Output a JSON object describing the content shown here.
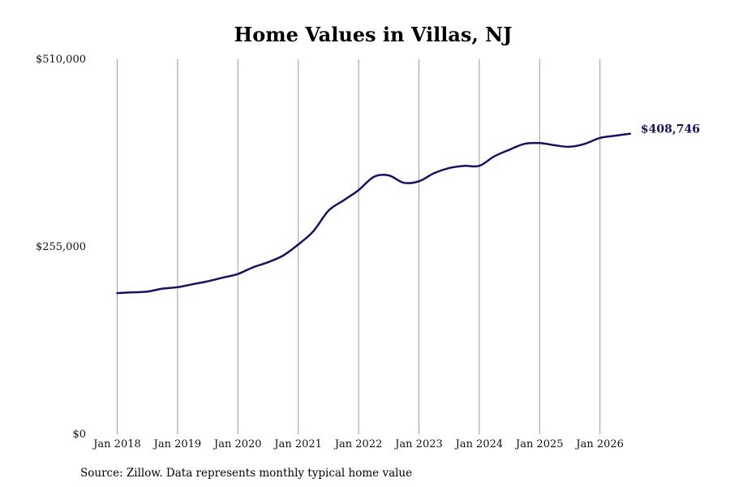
{
  "chart_data": {
    "type": "line",
    "title": "Home Values in Villas, NJ",
    "xlabel": "",
    "ylabel": "",
    "x_ticks": [
      "Jan 2018",
      "Jan 2019",
      "Jan 2020",
      "Jan 2021",
      "Jan 2022",
      "Jan 2023",
      "Jan 2024",
      "Jan 2025",
      "Jan 2026"
    ],
    "y_ticks": [
      "$0",
      "$255,000",
      "$510,000"
    ],
    "ylim": [
      0,
      510000
    ],
    "grid": "vertical lines at each January",
    "end_value_label": "$408,746",
    "line_color": "#14145e",
    "series": [
      {
        "values_note": "monthly typical home value",
        "x": [
          "2018-01",
          "2018-04",
          "2018-07",
          "2018-10",
          "2019-01",
          "2019-04",
          "2019-07",
          "2019-10",
          "2020-01",
          "2020-04",
          "2020-07",
          "2020-10",
          "2021-01",
          "2021-04",
          "2021-07",
          "2021-10",
          "2022-01",
          "2022-04",
          "2022-07",
          "2022-10",
          "2023-01",
          "2023-04",
          "2023-07",
          "2023-10",
          "2024-01",
          "2024-04",
          "2024-07",
          "2024-10",
          "2025-01",
          "2025-04",
          "2025-07",
          "2025-10",
          "2026-01",
          "2026-04",
          "2026-07"
        ],
        "y": [
          192000,
          193000,
          194000,
          198000,
          200000,
          204000,
          208000,
          213000,
          218000,
          227000,
          234000,
          243000,
          258000,
          276000,
          304000,
          318000,
          332000,
          350000,
          352000,
          342000,
          344000,
          355000,
          362000,
          365000,
          365000,
          378000,
          387000,
          395000,
          396000,
          393000,
          391000,
          395000,
          403000,
          406000,
          408746
        ]
      }
    ]
  },
  "source": "Source: Zillow. Data represents monthly typical home value"
}
